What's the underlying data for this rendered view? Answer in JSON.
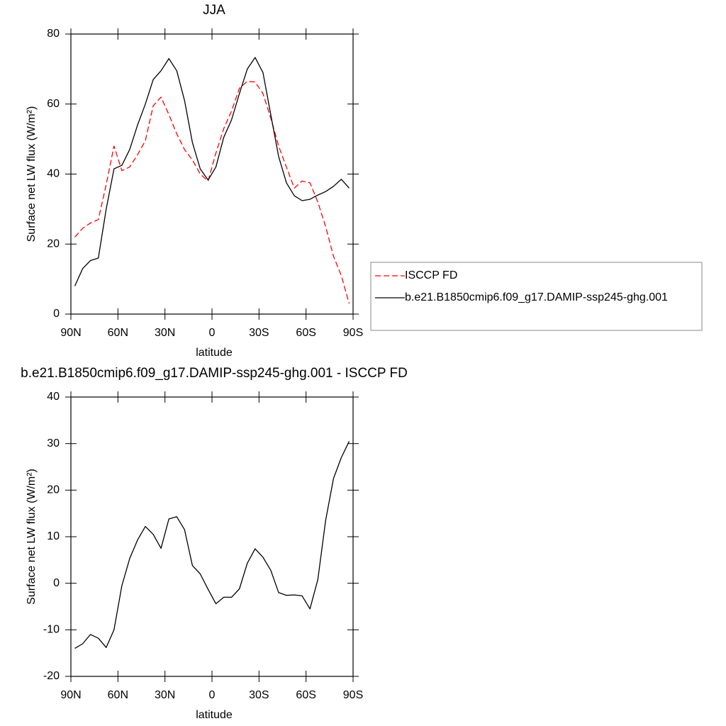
{
  "chart_data": [
    {
      "type": "line",
      "title": "JJA",
      "xlabel": "latitude",
      "ylabel": "Surface net LW flux (W/m²)",
      "x": [
        87.5,
        82.5,
        77.5,
        72.5,
        67.5,
        62.5,
        57.5,
        52.5,
        47.5,
        42.5,
        37.5,
        32.5,
        27.5,
        22.5,
        17.5,
        12.5,
        7.5,
        2.5,
        -2.5,
        -7.5,
        -12.5,
        -17.5,
        -22.5,
        -27.5,
        -32.5,
        -37.5,
        -42.5,
        -47.5,
        -52.5,
        -57.5,
        -62.5,
        -67.5,
        -72.5,
        -77.5,
        -82.5,
        -87.5
      ],
      "series": [
        {
          "name": "ISCCP FD",
          "color": "#ff0000",
          "line_style": "dashed",
          "values": [
            22,
            24.5,
            26,
            27,
            37,
            48,
            41,
            42,
            45.5,
            49.5,
            59.5,
            62,
            57,
            51.5,
            47,
            44,
            40,
            38,
            46,
            53,
            58,
            64.5,
            66.5,
            66.3,
            63,
            56,
            48,
            42,
            36,
            38,
            37.5,
            32,
            25,
            16.5,
            11,
            3
          ]
        },
        {
          "name": "b.e21.B1850cmip6.f09_g17.DAMIP-ssp245-ghg.001",
          "color": "#000000",
          "line_style": "solid",
          "values": [
            8,
            13,
            15.3,
            16,
            30,
            41.5,
            42.5,
            47,
            54,
            60,
            67,
            69.5,
            73,
            69.5,
            61,
            49,
            41.5,
            38.3,
            42,
            50.5,
            55.5,
            63,
            70,
            73.3,
            69,
            57,
            45,
            37.5,
            33.8,
            32.4,
            32.8,
            34,
            35,
            36.5,
            38.5,
            36
          ]
        }
      ],
      "xlim": [
        90,
        -90
      ],
      "xticks": [
        {
          "value": 90,
          "label": "90N"
        },
        {
          "value": 60,
          "label": "60N"
        },
        {
          "value": 30,
          "label": "30N"
        },
        0,
        {
          "value": -30,
          "label": "30S"
        },
        {
          "value": -60,
          "label": "60S"
        },
        {
          "value": -90,
          "label": "90S"
        }
      ],
      "ylim": [
        0,
        80
      ],
      "yticks": [
        0,
        20,
        40,
        60,
        80
      ],
      "legend": "right"
    },
    {
      "type": "line",
      "title": "b.e21.B1850cmip6.f09_g17.DAMIP-ssp245-ghg.001 - ISCCP FD",
      "xlabel": "latitude",
      "ylabel": "Surface net LW flux (W/m²)",
      "x": [
        87.5,
        82.5,
        77.5,
        72.5,
        67.5,
        62.5,
        57.5,
        52.5,
        47.5,
        42.5,
        37.5,
        32.5,
        27.5,
        22.5,
        17.5,
        12.5,
        7.5,
        2.5,
        -2.5,
        -7.5,
        -12.5,
        -17.5,
        -22.5,
        -27.5,
        -32.5,
        -37.5,
        -42.5,
        -47.5,
        -52.5,
        -57.5,
        -62.5,
        -67.5,
        -72.5,
        -77.5,
        -82.5,
        -87.5
      ],
      "series": [
        {
          "color": "#000000",
          "line_style": "solid",
          "values": [
            -14,
            -13,
            -11,
            -11.8,
            -13.8,
            -10,
            -0.5,
            5.3,
            9.3,
            12.2,
            10.5,
            7.5,
            13.8,
            14.3,
            11.5,
            3.8,
            2,
            -1.3,
            -4.4,
            -3,
            -3,
            -1.2,
            4.3,
            7.4,
            5.6,
            2.8,
            -2,
            -2.6,
            -2.5,
            -2.7,
            -5.5,
            0.8,
            13.5,
            22.5,
            27,
            30.5
          ]
        }
      ],
      "xlim": [
        90,
        -90
      ],
      "xticks": [
        {
          "value": 90,
          "label": "90N"
        },
        {
          "value": 60,
          "label": "60N"
        },
        {
          "value": 30,
          "label": "30N"
        },
        0,
        {
          "value": -30,
          "label": "30S"
        },
        {
          "value": -60,
          "label": "60S"
        },
        {
          "value": -90,
          "label": "90S"
        }
      ],
      "ylim": [
        -20,
        40
      ],
      "yticks": [
        -20,
        -10,
        0,
        10,
        20,
        30,
        40
      ]
    }
  ]
}
